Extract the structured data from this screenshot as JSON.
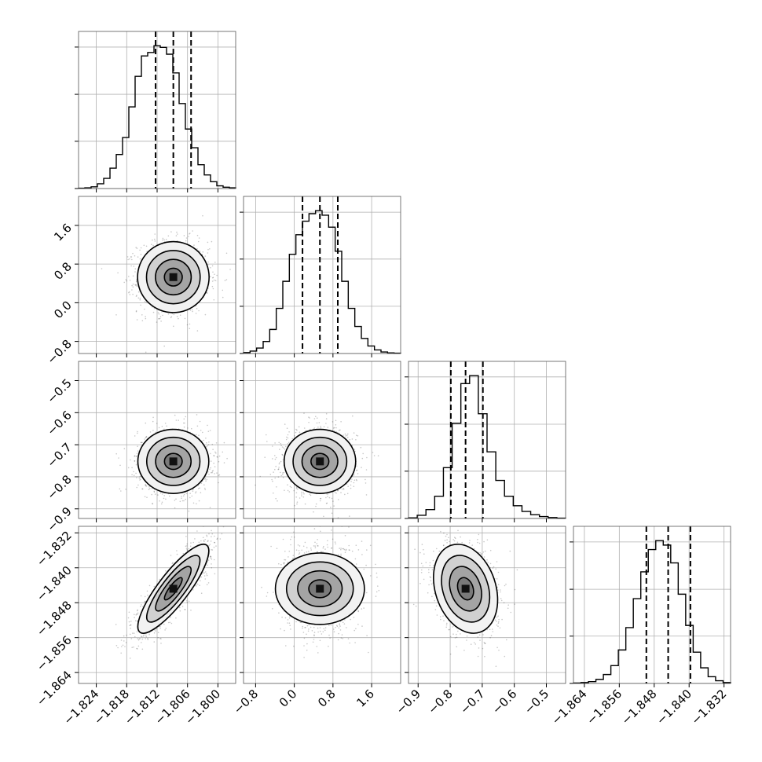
{
  "chart_data": {
    "type": "corner",
    "title": "",
    "parameters": [
      {
        "key": "p0",
        "axis_label": "",
        "range": [
          -1.8275,
          -1.7965
        ],
        "ticks": [
          -1.824,
          -1.818,
          -1.812,
          -1.806,
          -1.8
        ],
        "tick_labels": [
          "−1.824",
          "−1.818",
          "−1.812",
          "−1.806",
          "−1.800"
        ],
        "quantiles": {
          "q16": -1.8123,
          "median": -1.8088,
          "q84": -1.8053
        },
        "histogram": {
          "bin_edges_range": [
            -1.8275,
            -1.7965
          ],
          "counts": [
            1,
            2,
            5,
            14,
            30,
            60,
            100,
            150,
            240,
            330,
            390,
            400,
            420,
            415,
            395,
            340,
            250,
            175,
            120,
            70,
            40,
            20,
            8,
            4,
            2
          ]
        }
      },
      {
        "key": "p1",
        "axis_label": "",
        "range": [
          -1.05,
          2.2
        ],
        "ticks": [
          -0.8,
          0.0,
          0.8,
          1.6
        ],
        "tick_labels": [
          "−0.8",
          "0.0",
          "0.8",
          "1.6"
        ],
        "quantiles": {
          "q16": 0.17,
          "median": 0.53,
          "q84": 0.9
        },
        "histogram": {
          "bin_edges_range": [
            -1.05,
            2.2
          ],
          "counts": [
            3,
            8,
            18,
            40,
            80,
            150,
            240,
            330,
            395,
            440,
            465,
            475,
            460,
            420,
            340,
            240,
            150,
            90,
            50,
            25,
            12,
            5,
            2,
            1
          ]
        }
      },
      {
        "key": "p2",
        "axis_label": "",
        "range": [
          -0.93,
          -0.44
        ],
        "ticks": [
          -0.9,
          -0.8,
          -0.7,
          -0.6,
          -0.5
        ],
        "tick_labels": [
          "−0.9",
          "−0.8",
          "−0.7",
          "−0.6",
          "−0.5"
        ],
        "quantiles": {
          "q16": -0.798,
          "median": -0.752,
          "q84": -0.698
        },
        "histogram": {
          "bin_edges_range": [
            -0.93,
            -0.44
          ],
          "counts": [
            2,
            10,
            28,
            70,
            160,
            300,
            425,
            450,
            330,
            210,
            120,
            70,
            40,
            22,
            12,
            6,
            3,
            1
          ]
        }
      },
      {
        "key": "p3",
        "axis_label": "",
        "range": [
          -1.8665,
          -1.8305
        ],
        "ticks": [
          -1.864,
          -1.856,
          -1.848,
          -1.84,
          -1.832
        ],
        "tick_labels": [
          "−1.864",
          "−1.856",
          "−1.848",
          "−1.840",
          "−1.832"
        ],
        "quantiles": {
          "q16": -1.8498,
          "median": -1.8448,
          "q84": -1.8397
        },
        "histogram": {
          "bin_edges_range": [
            -1.8665,
            -1.8305
          ],
          "counts": [
            1,
            2,
            4,
            9,
            20,
            40,
            75,
            125,
            190,
            250,
            300,
            320,
            310,
            270,
            200,
            130,
            70,
            35,
            15,
            6,
            2
          ]
        }
      }
    ],
    "pairs": [
      {
        "x": "p0",
        "y": "p1",
        "mean": [
          -1.8088,
          0.53
        ],
        "sigma": [
          0.0035,
          0.37
        ],
        "rho": 0.0
      },
      {
        "x": "p0",
        "y": "p2",
        "mean": [
          -1.8088,
          -0.752
        ],
        "sigma": [
          0.0035,
          0.05
        ],
        "rho": 0.0
      },
      {
        "x": "p1",
        "y": "p2",
        "mean": [
          0.53,
          -0.752
        ],
        "sigma": [
          0.37,
          0.05
        ],
        "rho": 0.0
      },
      {
        "x": "p0",
        "y": "p3",
        "mean": [
          -1.8088,
          -1.8448
        ],
        "sigma": [
          0.0035,
          0.0051
        ],
        "rho": 0.85
      },
      {
        "x": "p1",
        "y": "p3",
        "mean": [
          0.53,
          -1.8448
        ],
        "sigma": [
          0.37,
          0.0051
        ],
        "rho": 0.0
      },
      {
        "x": "p2",
        "y": "p3",
        "mean": [
          -0.752,
          -1.8448
        ],
        "sigma": [
          0.05,
          0.0051
        ],
        "rho": -0.25
      }
    ],
    "contour_levels_sigma": [
      0.5,
      1.0,
      1.5,
      2.0
    ],
    "grid": true,
    "legend": "none",
    "colors": {
      "line": "#000000",
      "grid": "#b0b0b0",
      "frame": "#555555",
      "density": "#000000"
    }
  }
}
